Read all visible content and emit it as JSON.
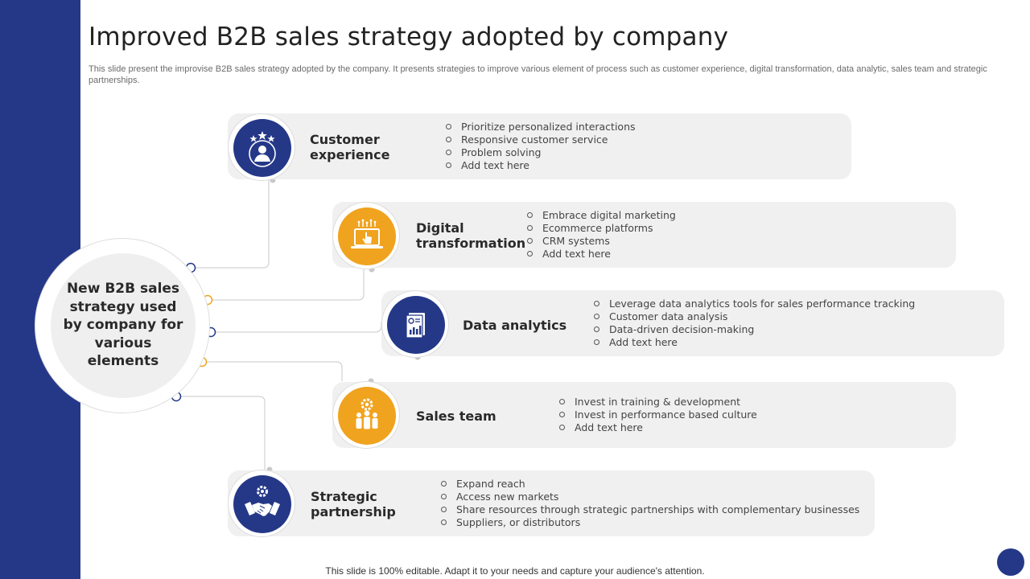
{
  "title": "Improved B2B sales strategy adopted by company",
  "subtitle": "This slide present the improvise B2B sales strategy adopted by the company. It presents strategies to improve various element of process such as customer experience, digital transformation, data analytic, sales team and strategic partnerships.",
  "center": {
    "label": "New B2B sales strategy used by company for various elements"
  },
  "colors": {
    "navy": "#253888",
    "orange": "#f0a31e",
    "panel": "#f0f0f0",
    "connector": "#c8c8c8"
  },
  "strategies": [
    {
      "heading": "Customer experience",
      "icon": "customer-stars-icon",
      "bullets": [
        "Prioritize personalized interactions",
        "Responsive customer service",
        "Problem solving",
        "Add text here"
      ]
    },
    {
      "heading": "Digital transformation",
      "icon": "laptop-touch-icon",
      "bullets": [
        "Embrace digital marketing",
        "Ecommerce platforms",
        "CRM systems",
        "Add text here"
      ]
    },
    {
      "heading": "Data analytics",
      "icon": "report-chart-icon",
      "bullets": [
        "Leverage  data analytics tools for sales performance  tracking",
        "Customer data analysis",
        "Data-driven  decision-making",
        "Add text here"
      ]
    },
    {
      "heading": "Sales team",
      "icon": "team-gear-icon",
      "bullets": [
        "Invest  in training & development",
        "Invest  in performance  based culture",
        "Add text here"
      ]
    },
    {
      "heading": "Strategic partnership",
      "icon": "handshake-gear-icon",
      "bullets": [
        "Expand reach",
        "Access new markets",
        "Share resources through strategic partnerships  with complementary  businesses",
        "Suppliers,  or distributors"
      ]
    }
  ],
  "footer": "This slide is 100% editable. Adapt it to your needs and capture your audience's attention."
}
